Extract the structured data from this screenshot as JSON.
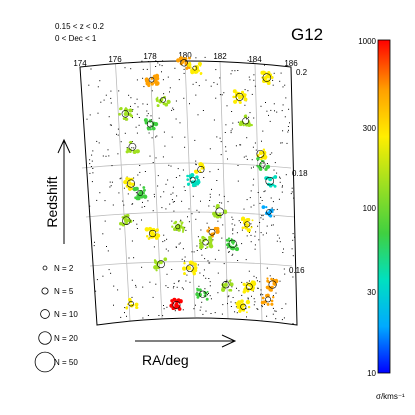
{
  "chart_data": {
    "type": "scatter",
    "field_label": "G12",
    "selection": [
      "0.15 < z < 0.2",
      "0 < Dec < 1"
    ],
    "xlabel": "RA/deg",
    "ylabel": "Redshift",
    "x_ticks": [
      "174",
      "176",
      "178",
      "180",
      "182",
      "184",
      "186"
    ],
    "y_ticks": [
      "0.16",
      "0.18",
      "0.2"
    ],
    "xlim": [
      174,
      186
    ],
    "ylim": [
      0.15,
      0.2
    ],
    "colorbar": {
      "label": "σ/kms⁻¹",
      "scale": "log",
      "range": [
        10,
        1000
      ],
      "ticks": [
        "1000",
        "300",
        "100",
        "30",
        "10"
      ],
      "colormap": [
        "#0000ff",
        "#00aaff",
        "#00e0c0",
        "#40d040",
        "#a0e020",
        "#ffee00",
        "#ffa000",
        "#ff0000"
      ]
    },
    "size_legend": [
      "N = 2",
      "N = 5",
      "N = 10",
      "N = 20",
      "N = 50"
    ],
    "size_legend_n": [
      2,
      5,
      10,
      20,
      50
    ],
    "group_colors": [
      "#0000ff",
      "#00aaff",
      "#00e0c0",
      "#40d040",
      "#a0e020",
      "#ffee00",
      "#ffa000",
      "#ff0000"
    ],
    "groups": [
      {
        "ra": 179.9,
        "z": 0.1985,
        "sigma": 400
      },
      {
        "ra": 180.5,
        "z": 0.1975,
        "sigma": 250
      },
      {
        "ra": 178.0,
        "z": 0.1955,
        "sigma": 700
      },
      {
        "ra": 184.6,
        "z": 0.197,
        "sigma": 300
      },
      {
        "ra": 178.6,
        "z": 0.1915,
        "sigma": 150
      },
      {
        "ra": 176.4,
        "z": 0.1895,
        "sigma": 120
      },
      {
        "ra": 177.8,
        "z": 0.187,
        "sigma": 60
      },
      {
        "ra": 183.0,
        "z": 0.1925,
        "sigma": 250
      },
      {
        "ra": 176.7,
        "z": 0.183,
        "sigma": 180
      },
      {
        "ra": 183.3,
        "z": 0.188,
        "sigma": 140
      },
      {
        "ra": 184.1,
        "z": 0.182,
        "sigma": 350
      },
      {
        "ra": 184.2,
        "z": 0.18,
        "sigma": 80
      },
      {
        "ra": 176.5,
        "z": 0.176,
        "sigma": 200
      },
      {
        "ra": 177.0,
        "z": 0.174,
        "sigma": 90
      },
      {
        "ra": 180.6,
        "z": 0.178,
        "sigma": 300
      },
      {
        "ra": 180.1,
        "z": 0.176,
        "sigma": 50
      },
      {
        "ra": 184.6,
        "z": 0.177,
        "sigma": 40
      },
      {
        "ra": 181.6,
        "z": 0.17,
        "sigma": 150
      },
      {
        "ra": 181.1,
        "z": 0.166,
        "sigma": 500
      },
      {
        "ra": 180.7,
        "z": 0.164,
        "sigma": 100
      },
      {
        "ra": 177.6,
        "z": 0.166,
        "sigma": 250
      },
      {
        "ra": 176.1,
        "z": 0.169,
        "sigma": 120
      },
      {
        "ra": 179.1,
        "z": 0.167,
        "sigma": 180
      },
      {
        "ra": 183.2,
        "z": 0.168,
        "sigma": 300
      },
      {
        "ra": 184.5,
        "z": 0.171,
        "sigma": 20
      },
      {
        "ra": 182.3,
        "z": 0.164,
        "sigma": 60
      },
      {
        "ra": 178.0,
        "z": 0.16,
        "sigma": 150
      },
      {
        "ra": 179.7,
        "z": 0.159,
        "sigma": 350
      },
      {
        "ra": 183.2,
        "z": 0.156,
        "sigma": 200
      },
      {
        "ra": 184.6,
        "z": 0.157,
        "sigma": 600
      },
      {
        "ra": 181.8,
        "z": 0.156,
        "sigma": 110
      },
      {
        "ra": 176.1,
        "z": 0.153,
        "sigma": 200
      },
      {
        "ra": 178.8,
        "z": 0.152,
        "sigma": 800
      },
      {
        "ra": 180.4,
        "z": 0.154,
        "sigma": 60
      },
      {
        "ra": 182.8,
        "z": 0.152,
        "sigma": 250
      },
      {
        "ra": 184.3,
        "z": 0.154,
        "sigma": 400
      }
    ]
  }
}
